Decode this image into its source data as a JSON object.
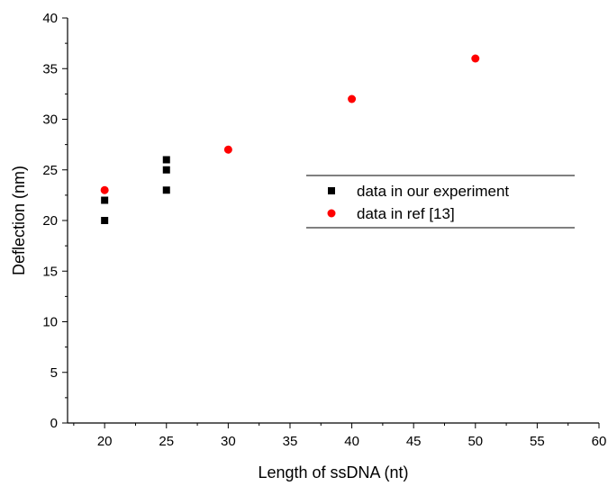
{
  "chart_data": {
    "type": "scatter",
    "title": "",
    "xlabel": "Length of ssDNA (nt)",
    "ylabel": "Deflection (nm)",
    "xlim": [
      17,
      60
    ],
    "ylim": [
      0,
      40
    ],
    "x_ticks": [
      20,
      25,
      30,
      35,
      40,
      45,
      50,
      55,
      60
    ],
    "y_ticks": [
      0,
      5,
      10,
      15,
      20,
      25,
      30,
      35,
      40
    ],
    "grid": false,
    "legend_position": "center-right",
    "series": [
      {
        "name": "data in our experiment",
        "marker": "square",
        "color": "#000000",
        "points": [
          {
            "x": 20,
            "y": 22
          },
          {
            "x": 20,
            "y": 20
          },
          {
            "x": 25,
            "y": 26
          },
          {
            "x": 25,
            "y": 25
          },
          {
            "x": 25,
            "y": 23
          }
        ]
      },
      {
        "name": "data in ref [13]",
        "marker": "circle",
        "color": "#ff0000",
        "points": [
          {
            "x": 20,
            "y": 23
          },
          {
            "x": 30,
            "y": 27
          },
          {
            "x": 40,
            "y": 32
          },
          {
            "x": 50,
            "y": 36
          }
        ]
      }
    ]
  }
}
